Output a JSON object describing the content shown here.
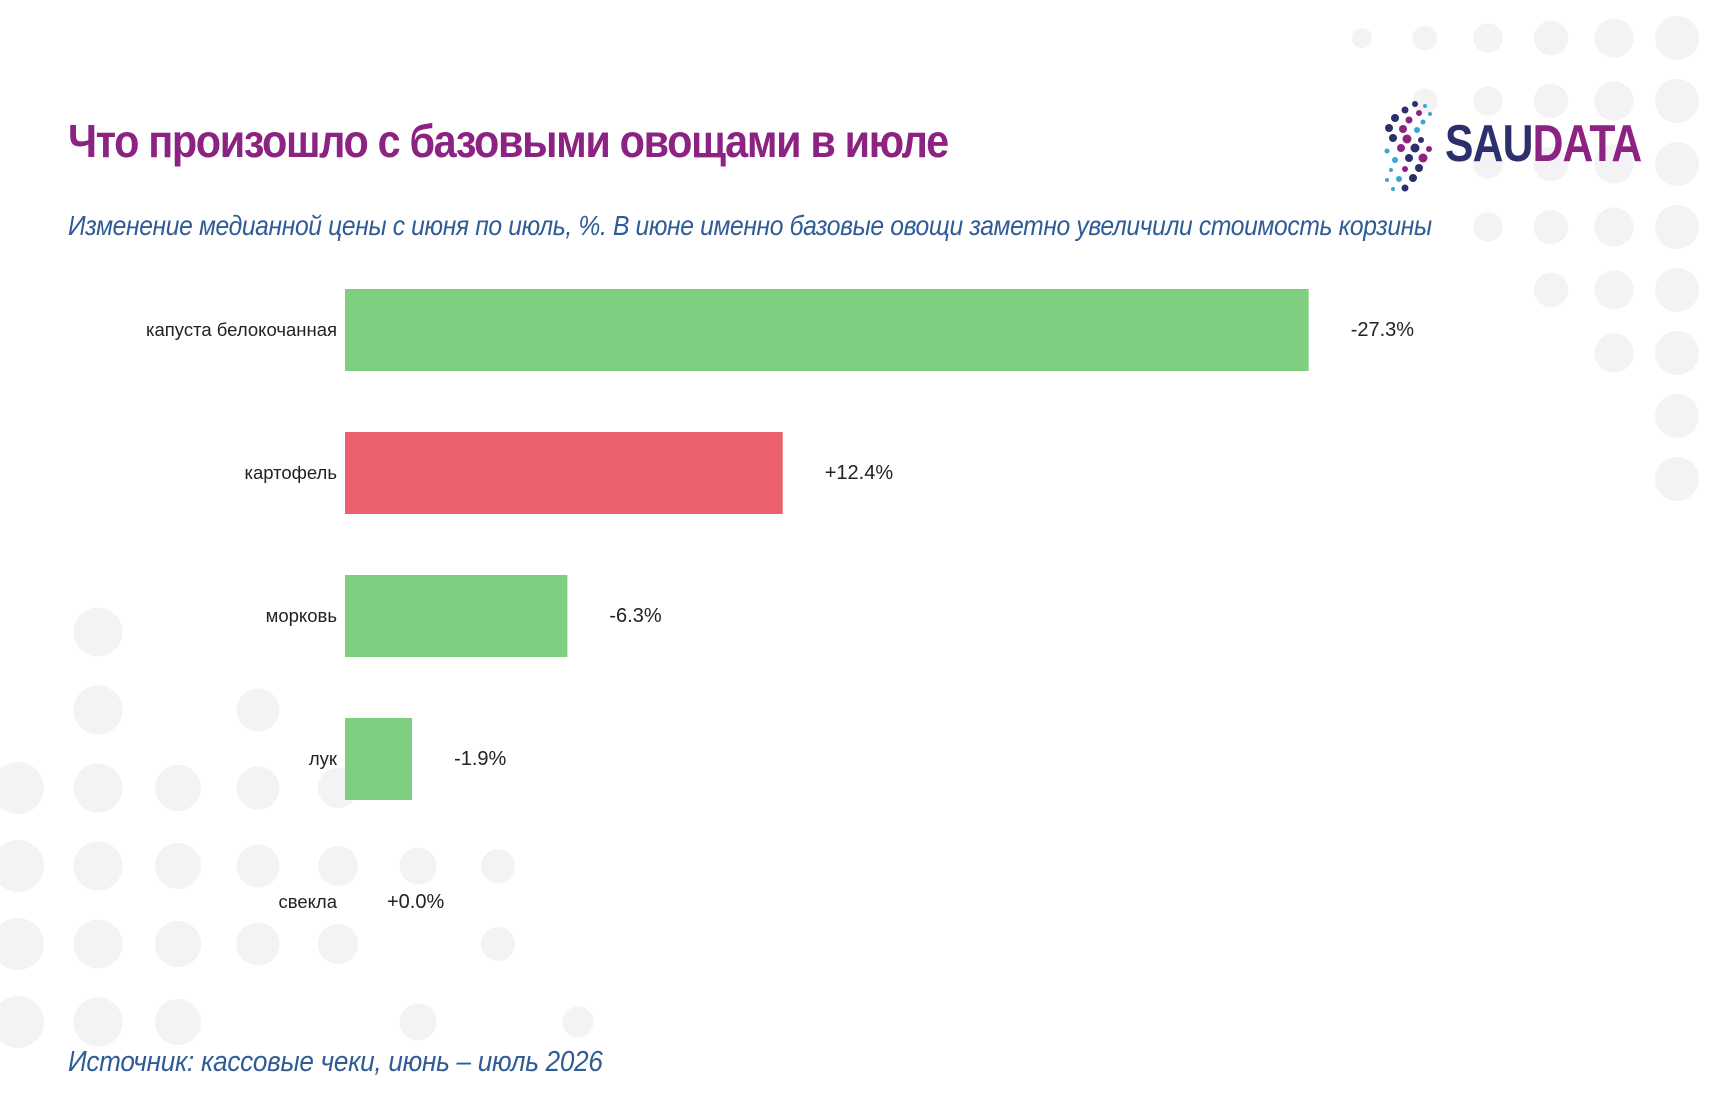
{
  "title": "Что произошло с базовыми овощами в июле",
  "subtitle": "Изменение медианной цены с июня по июль, %. В июне именно базовые овощи заметно увеличили стоимость корзины",
  "source": "Источник: кассовые чеки, июнь – июль 2026",
  "logo": {
    "part1": "SAU",
    "part2": "DATA",
    "color_part1": "#2b2f6b",
    "color_part2": "#8c2382"
  },
  "colors": {
    "decrease": "#80cf80",
    "increase": "#eb606b",
    "title": "#8c2382",
    "subtitle": "#2f5c96",
    "background_dots": "#f3f3f5"
  },
  "chart_data": {
    "type": "bar",
    "orientation": "horizontal",
    "categories": [
      "капуста белокочанная",
      "картофель",
      "морковь",
      "лук",
      "свекла"
    ],
    "values": [
      -27.3,
      12.4,
      -6.3,
      -1.9,
      0.0
    ],
    "value_labels": [
      "-27.3%",
      "+12.4%",
      "-6.3%",
      "-1.9%",
      "+0.0%"
    ],
    "bar_length_scale": "absolute value",
    "bar_color_rule": "green for decrease, red for increase",
    "grid": false,
    "legend": "none"
  }
}
